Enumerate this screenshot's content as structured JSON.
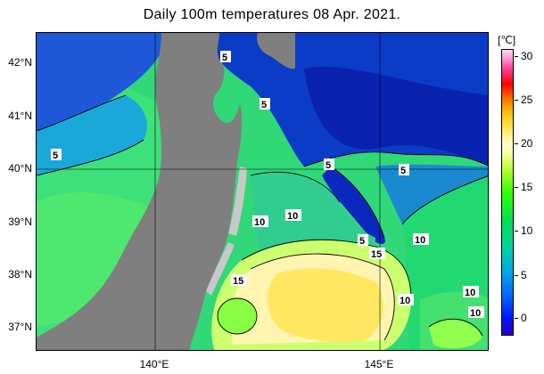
{
  "title": "Daily 100m temperatures 08 Apr. 2021.",
  "y_axis_labels": [
    "42°N",
    "41°N",
    "40°N",
    "39°N",
    "38°N",
    "37°N"
  ],
  "x_axis_labels": [
    "140°E",
    "145°E"
  ],
  "colorbar": {
    "unit": "[℃]",
    "ticks": [
      "30",
      "25",
      "20",
      "15",
      "10",
      "5",
      "0"
    ]
  },
  "contour_labels": [
    "5",
    "5",
    "5",
    "5",
    "5",
    "5",
    "10",
    "10",
    "10",
    "10",
    "10",
    "10",
    "15",
    "15"
  ],
  "colors": {
    "land": "#7f7f7f",
    "cold_water": "#0a32c8",
    "cool_water": "#1aa8c8",
    "mid_water": "#22d88c",
    "warm_water": "#8cff22",
    "warmest_water": "#fff0a0"
  }
}
